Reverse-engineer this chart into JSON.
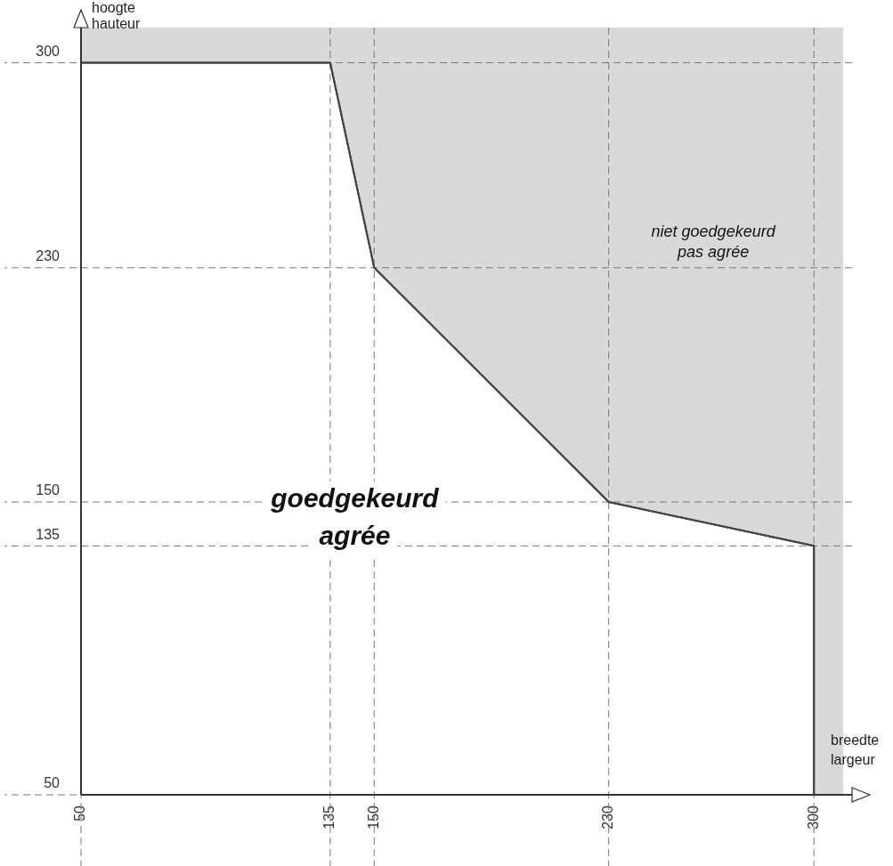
{
  "chart_data": {
    "type": "area",
    "xlabel": "breedte\nlargeur",
    "ylabel": "hoogte\nhauteur",
    "x": [
      50,
      135,
      150,
      230,
      300,
      300
    ],
    "series": [
      {
        "color": "#444444",
        "values": [
          300,
          300,
          230,
          150,
          135,
          50
        ]
      }
    ],
    "xlim": [
      50,
      313
    ],
    "ylim": [
      50,
      312
    ],
    "xticks": [
      50,
      135,
      150,
      230,
      300
    ],
    "yticks": [
      50,
      135,
      150,
      230,
      300
    ],
    "grid": true,
    "line_style": "solid",
    "marker": "none",
    "legend": false,
    "bands": [
      {
        "axis": "x",
        "from": 50,
        "to": 310,
        "color": "#d9d9d9"
      }
    ],
    "annotations": [
      "goedgekeurd\nagrée",
      "niet goedgekeurd\npas agrée"
    ]
  }
}
